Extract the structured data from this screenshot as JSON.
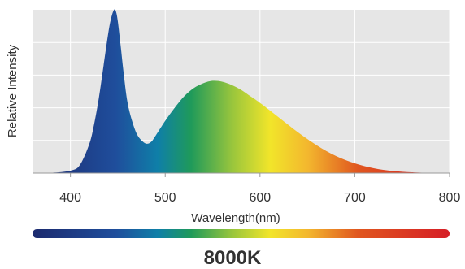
{
  "chart_data": {
    "type": "area",
    "title": "8000K",
    "xlabel": "Wavelength(nm)",
    "ylabel": "Relative Intensity",
    "xlim": [
      360,
      800
    ],
    "ylim": [
      0,
      1.0
    ],
    "x_ticks": [
      "400",
      "500",
      "600",
      "700",
      "800"
    ],
    "grid": true,
    "background_color": "#e6e6e6",
    "grid_color": "#ffffff",
    "series": [
      {
        "x": [
          360,
          380,
          400,
          410,
          420,
          425,
          430,
          435,
          440,
          443,
          446,
          448,
          450,
          453,
          456,
          460,
          465,
          470,
          475,
          480,
          485,
          490,
          500,
          510,
          520,
          530,
          540,
          550,
          560,
          570,
          580,
          590,
          600,
          620,
          640,
          660,
          680,
          700,
          720,
          740,
          760,
          780,
          800
        ],
        "y": [
          0.0,
          0.002,
          0.015,
          0.05,
          0.18,
          0.3,
          0.46,
          0.66,
          0.86,
          0.95,
          1.0,
          0.99,
          0.93,
          0.78,
          0.62,
          0.44,
          0.32,
          0.24,
          0.2,
          0.18,
          0.19,
          0.23,
          0.32,
          0.4,
          0.47,
          0.52,
          0.55,
          0.565,
          0.56,
          0.54,
          0.51,
          0.47,
          0.43,
          0.34,
          0.25,
          0.17,
          0.105,
          0.06,
          0.03,
          0.013,
          0.005,
          0.002,
          0.0
        ]
      }
    ]
  },
  "gradient_stops": [
    {
      "offset": 0.0,
      "color": "#1c2a6e"
    },
    {
      "offset": 0.2,
      "color": "#1f4e9c"
    },
    {
      "offset": 0.3,
      "color": "#0f7fa8"
    },
    {
      "offset": 0.38,
      "color": "#1f9a5a"
    },
    {
      "offset": 0.48,
      "color": "#9ac63c"
    },
    {
      "offset": 0.57,
      "color": "#f2e52a"
    },
    {
      "offset": 0.66,
      "color": "#f3b72e"
    },
    {
      "offset": 0.78,
      "color": "#e0561f"
    },
    {
      "offset": 1.0,
      "color": "#d61e26"
    }
  ]
}
